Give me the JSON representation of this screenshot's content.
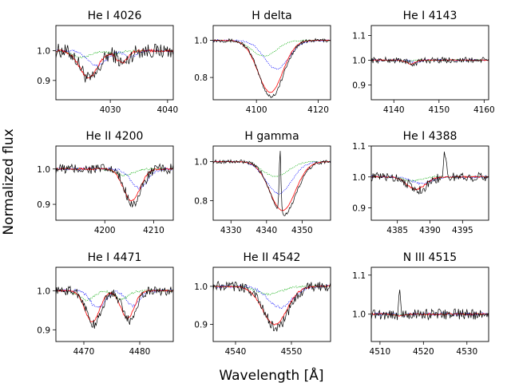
{
  "figure": {
    "xlabel": "Wavelength [Å]",
    "ylabel": "Normalized flux",
    "colors": {
      "observed": "#000000",
      "model": "#ff0000",
      "comp1": "#00aa00",
      "comp2": "#0000ff"
    }
  },
  "chart_data": [
    {
      "type": "line",
      "title": "He I 4026",
      "xlim": [
        4020.5,
        4041
      ],
      "ylim": [
        0.835,
        1.085
      ],
      "xticks": [
        4030,
        4040
      ],
      "yticks": [
        {
          "v": 0.9,
          "label": "0.9"
        },
        {
          "v": 1.0,
          "label": "1.0"
        }
      ],
      "lines": [
        {
          "center": 4026.2,
          "depth": 0.09,
          "width": 1.6
        },
        {
          "center": 4032.0,
          "depth": 0.04,
          "width": 1.0
        }
      ],
      "noise": 0.025,
      "c1": {
        "shift": -1.2,
        "scale": 0.25
      },
      "c2": {
        "shift": 1.5,
        "scale": 0.55
      },
      "series": [
        {
          "name": "observed",
          "color": "#000000"
        },
        {
          "name": "model",
          "color": "#ff0000"
        },
        {
          "name": "comp1",
          "color": "#00aa00"
        },
        {
          "name": "comp2",
          "color": "#0000ff"
        }
      ]
    },
    {
      "type": "line",
      "title": "H delta",
      "xlim": [
        4086,
        4124
      ],
      "ylim": [
        0.68,
        1.08
      ],
      "xticks": [
        4100,
        4120
      ],
      "yticks": [
        {
          "v": 0.8,
          "label": "0.8"
        },
        {
          "v": 1.0,
          "label": "1.0"
        }
      ],
      "lines": [
        {
          "center": 4104.5,
          "depth": 0.28,
          "width": 4.0
        }
      ],
      "noise": 0.01,
      "c1": {
        "shift": -2,
        "scale": 0.3
      },
      "c2": {
        "shift": 2,
        "scale": 0.55
      },
      "series": [
        {
          "name": "observed",
          "color": "#000000"
        },
        {
          "name": "model",
          "color": "#ff0000"
        },
        {
          "name": "comp1",
          "color": "#00aa00"
        },
        {
          "name": "comp2",
          "color": "#0000ff"
        }
      ]
    },
    {
      "type": "line",
      "title": "He I 4143",
      "xlim": [
        4135,
        4161
      ],
      "ylim": [
        0.84,
        1.14
      ],
      "xticks": [
        4140,
        4150,
        4160
      ],
      "yticks": [
        {
          "v": 0.9,
          "label": "0.9"
        },
        {
          "v": 1.0,
          "label": "1.0"
        },
        {
          "v": 1.1,
          "label": "1.1"
        }
      ],
      "lines": [
        {
          "center": 4143.8,
          "depth": 0.015,
          "width": 1.0
        }
      ],
      "noise": 0.012,
      "c1": {
        "shift": -1,
        "scale": 0.3
      },
      "c2": {
        "shift": 1,
        "scale": 0.6
      },
      "series": [
        {
          "name": "observed",
          "color": "#000000"
        },
        {
          "name": "model",
          "color": "#ff0000"
        },
        {
          "name": "comp1",
          "color": "#00aa00"
        },
        {
          "name": "comp2",
          "color": "#0000ff"
        }
      ]
    },
    {
      "type": "line",
      "title": "He II 4200",
      "xlim": [
        4190,
        4214
      ],
      "ylim": [
        0.855,
        1.065
      ],
      "xticks": [
        4200,
        4210
      ],
      "yticks": [
        {
          "v": 0.9,
          "label": "0.9"
        },
        {
          "v": 1.0,
          "label": "1.0"
        }
      ],
      "lines": [
        {
          "center": 4205.5,
          "depth": 0.09,
          "width": 1.7
        }
      ],
      "noise": 0.015,
      "c1": {
        "shift": -1.5,
        "scale": 0.2
      },
      "c2": {
        "shift": 1.5,
        "scale": 0.6
      },
      "series": [
        {
          "name": "observed",
          "color": "#000000"
        },
        {
          "name": "model",
          "color": "#ff0000"
        },
        {
          "name": "comp1",
          "color": "#00aa00"
        },
        {
          "name": "comp2",
          "color": "#0000ff"
        }
      ]
    },
    {
      "type": "line",
      "title": "H gamma",
      "xlim": [
        4325,
        4358
      ],
      "ylim": [
        0.7,
        1.08
      ],
      "xticks": [
        4330,
        4340,
        4350
      ],
      "yticks": [
        {
          "v": 0.8,
          "label": "0.8"
        },
        {
          "v": 1.0,
          "label": "1.0"
        }
      ],
      "lines": [
        {
          "center": 4344.5,
          "depth": 0.25,
          "width": 3.6
        }
      ],
      "noise": 0.01,
      "c1": {
        "shift": -2,
        "scale": 0.3
      },
      "c2": {
        "shift": -1,
        "scale": 0.65
      },
      "emission": {
        "center": 4343.8,
        "height": 0.32,
        "width": 0.25
      },
      "series": [
        {
          "name": "observed",
          "color": "#000000"
        },
        {
          "name": "model",
          "color": "#ff0000"
        },
        {
          "name": "comp1",
          "color": "#00aa00"
        },
        {
          "name": "comp2",
          "color": "#0000ff"
        }
      ]
    },
    {
      "type": "line",
      "title": "He I 4388",
      "xlim": [
        4381,
        4399
      ],
      "ylim": [
        0.86,
        1.1
      ],
      "xticks": [
        4385,
        4390,
        4395
      ],
      "yticks": [
        {
          "v": 0.9,
          "label": "0.9"
        },
        {
          "v": 1.0,
          "label": "1.0"
        },
        {
          "v": 1.1,
          "label": "1.1"
        }
      ],
      "lines": [
        {
          "center": 4387.9,
          "depth": 0.04,
          "width": 1.4
        }
      ],
      "noise": 0.015,
      "c1": {
        "shift": -0.8,
        "scale": 0.3
      },
      "c2": {
        "shift": 0.8,
        "scale": 0.55
      },
      "emission": {
        "center": 4392.3,
        "height": 0.08,
        "width": 0.2
      },
      "series": [
        {
          "name": "observed",
          "color": "#000000"
        },
        {
          "name": "model",
          "color": "#ff0000"
        },
        {
          "name": "comp1",
          "color": "#00aa00"
        },
        {
          "name": "comp2",
          "color": "#0000ff"
        }
      ]
    },
    {
      "type": "line",
      "title": "He I 4471",
      "xlim": [
        4465,
        4486
      ],
      "ylim": [
        0.87,
        1.06
      ],
      "xticks": [
        4470,
        4480
      ],
      "yticks": [
        {
          "v": 0.9,
          "label": "0.9"
        },
        {
          "v": 1.0,
          "label": "1.0"
        }
      ],
      "lines": [
        {
          "center": 4471.5,
          "depth": 0.08,
          "width": 1.3
        },
        {
          "center": 4477.8,
          "depth": 0.07,
          "width": 1.2
        }
      ],
      "noise": 0.012,
      "c1": {
        "shift": -1.0,
        "scale": 0.3
      },
      "c2": {
        "shift": 1.0,
        "scale": 0.55
      },
      "series": [
        {
          "name": "observed",
          "color": "#000000"
        },
        {
          "name": "model",
          "color": "#ff0000"
        },
        {
          "name": "comp1",
          "color": "#00aa00"
        },
        {
          "name": "comp2",
          "color": "#0000ff"
        }
      ]
    },
    {
      "type": "line",
      "title": "He II 4542",
      "xlim": [
        4536,
        4557
      ],
      "ylim": [
        0.855,
        1.05
      ],
      "xticks": [
        4540,
        4550
      ],
      "yticks": [
        {
          "v": 0.9,
          "label": "0.9"
        },
        {
          "v": 1.0,
          "label": "1.0"
        }
      ],
      "lines": [
        {
          "center": 4547.0,
          "depth": 0.1,
          "width": 2.2
        }
      ],
      "noise": 0.013,
      "c1": {
        "shift": -1.0,
        "scale": 0.2
      },
      "c2": {
        "shift": 1.0,
        "scale": 0.55
      },
      "series": [
        {
          "name": "observed",
          "color": "#000000"
        },
        {
          "name": "model",
          "color": "#ff0000"
        },
        {
          "name": "comp1",
          "color": "#00aa00"
        },
        {
          "name": "comp2",
          "color": "#0000ff"
        }
      ]
    },
    {
      "type": "line",
      "title": "N III 4515",
      "xlim": [
        4508,
        4535
      ],
      "ylim": [
        0.93,
        1.12
      ],
      "xticks": [
        4510,
        4520,
        4530
      ],
      "yticks": [
        {
          "v": 1.0,
          "label": "1.0"
        },
        {
          "v": 1.1,
          "label": "1.1"
        }
      ],
      "lines": [
        {
          "center": 4514.5,
          "depth": 0.005,
          "width": 1.0
        }
      ],
      "noise": 0.014,
      "c1": {
        "shift": -1,
        "scale": 0.3
      },
      "c2": {
        "shift": 1,
        "scale": 0.5
      },
      "emission": {
        "center": 4514.5,
        "height": 0.07,
        "width": 0.2
      },
      "series": [
        {
          "name": "observed",
          "color": "#000000"
        },
        {
          "name": "model",
          "color": "#ff0000"
        },
        {
          "name": "comp1",
          "color": "#00aa00"
        },
        {
          "name": "comp2",
          "color": "#0000ff"
        }
      ]
    }
  ]
}
